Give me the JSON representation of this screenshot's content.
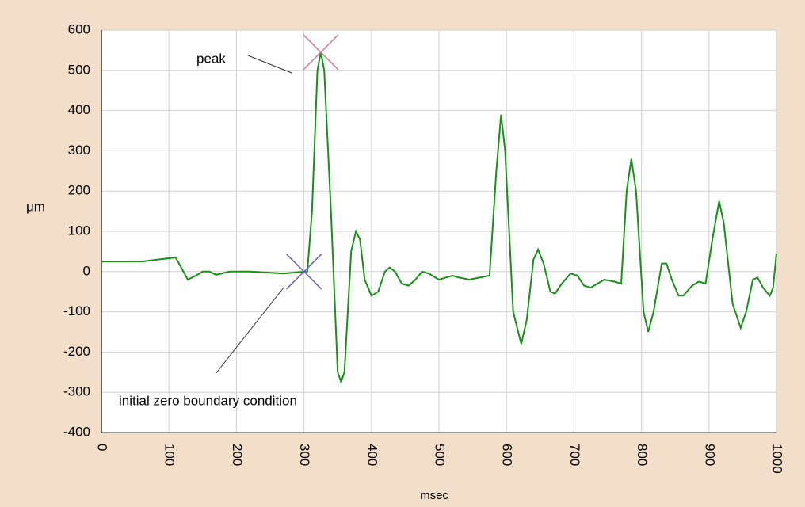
{
  "chart_data": {
    "type": "line",
    "x_label": "msec",
    "y_label": "μm",
    "xlim": [
      0,
      1000
    ],
    "xticks": [
      0,
      100,
      200,
      300,
      400,
      500,
      600,
      700,
      800,
      900,
      1000
    ],
    "ylim": [
      -400,
      600
    ],
    "yticks": [
      -400,
      -300,
      -200,
      -100,
      0,
      100,
      200,
      300,
      400,
      500,
      600
    ],
    "grid": true,
    "series": [
      {
        "color": "#1b8f1b",
        "x": [
          0,
          60,
          110,
          128,
          140,
          150,
          160,
          170,
          190,
          220,
          270,
          300,
          305,
          312,
          320,
          325,
          330,
          340,
          350,
          355,
          360,
          370,
          377,
          383,
          390,
          400,
          410,
          420,
          427,
          435,
          445,
          455,
          465,
          475,
          485,
          500,
          510,
          520,
          530,
          545,
          575,
          585,
          592,
          598,
          610,
          622,
          630,
          640,
          647,
          655,
          665,
          672,
          682,
          695,
          705,
          715,
          725,
          735,
          745,
          760,
          770,
          778,
          785,
          792,
          803,
          810,
          818,
          830,
          837,
          845,
          855,
          862,
          875,
          885,
          895,
          905,
          915,
          922,
          935,
          947,
          955,
          965,
          972,
          980,
          990,
          995,
          1000
        ],
        "values": [
          25,
          25,
          35,
          -20,
          -10,
          0,
          0,
          -8,
          0,
          0,
          -5,
          0,
          0,
          150,
          500,
          545,
          500,
          150,
          -250,
          -275,
          -250,
          50,
          100,
          80,
          -20,
          -60,
          -50,
          0,
          10,
          0,
          -30,
          -35,
          -20,
          0,
          -5,
          -20,
          -15,
          -10,
          -15,
          -20,
          -10,
          250,
          390,
          300,
          -100,
          -180,
          -120,
          30,
          55,
          20,
          -50,
          -55,
          -30,
          -5,
          -10,
          -35,
          -40,
          -30,
          -20,
          -25,
          -30,
          200,
          280,
          200,
          -100,
          -150,
          -100,
          20,
          20,
          -20,
          -60,
          -60,
          -35,
          -25,
          -30,
          80,
          175,
          120,
          -80,
          -140,
          -100,
          -20,
          -15,
          -40,
          -60,
          -40,
          45
        ]
      }
    ],
    "annotations": [
      {
        "text": "peak",
        "x": 325,
        "y": 545,
        "color": "#c47fa3"
      },
      {
        "text": "initial zero boundary condition",
        "x": 300,
        "y": 0,
        "color": "#6a63b5"
      }
    ]
  }
}
